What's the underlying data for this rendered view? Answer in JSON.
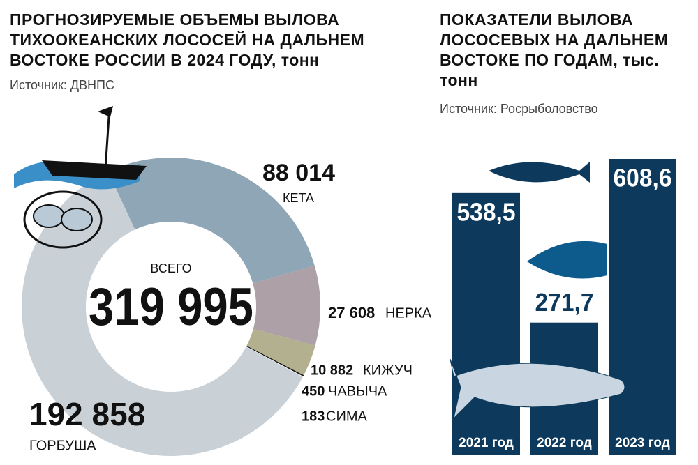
{
  "chart_data": [
    {
      "type": "donut",
      "title": "ПРОГНОЗИРУЕМЫЕ ОБЪЕМЫ ВЫЛОВА ТИХООКЕАНСКИХ ЛОСОСЕЙ НА ДАЛЬНЕМ ВОСТОКЕ РОССИИ В 2024 ГОДУ, тонн",
      "source": "Источник: ДВНПС",
      "center_label": "ВСЕГО",
      "total": {
        "value": 319995,
        "label": "319 995"
      },
      "categories": [
        "КЕТА",
        "НЕРКА",
        "КИЖУЧ",
        "ЧАВЫЧА",
        "СИМА",
        "ГОРБУША"
      ],
      "values": [
        88014,
        27608,
        10882,
        450,
        183,
        192858
      ],
      "value_labels": [
        "88 014",
        "27 608",
        "10 882",
        "450",
        "183",
        "192 858"
      ],
      "colors": [
        "#8fa6b6",
        "#ada0a6",
        "#b3b08f",
        "#111111",
        "#ffffff",
        "#c9d1d7"
      ]
    },
    {
      "type": "bar",
      "title": "ПОКАЗАТЕЛИ ВЫЛОВА ЛОСОСЕВЫХ НА ДАЛЬНЕМ ВОСТОКЕ ПО ГОДАМ, тыс. тонн",
      "source": "Источник: Росрыболовство",
      "categories": [
        "2021 год",
        "2022 год",
        "2023 год"
      ],
      "values": [
        538.5,
        271.7,
        608.6
      ],
      "value_labels": [
        "538,5",
        "271,7",
        "608,6"
      ],
      "color": "#0d3a5c"
    }
  ]
}
